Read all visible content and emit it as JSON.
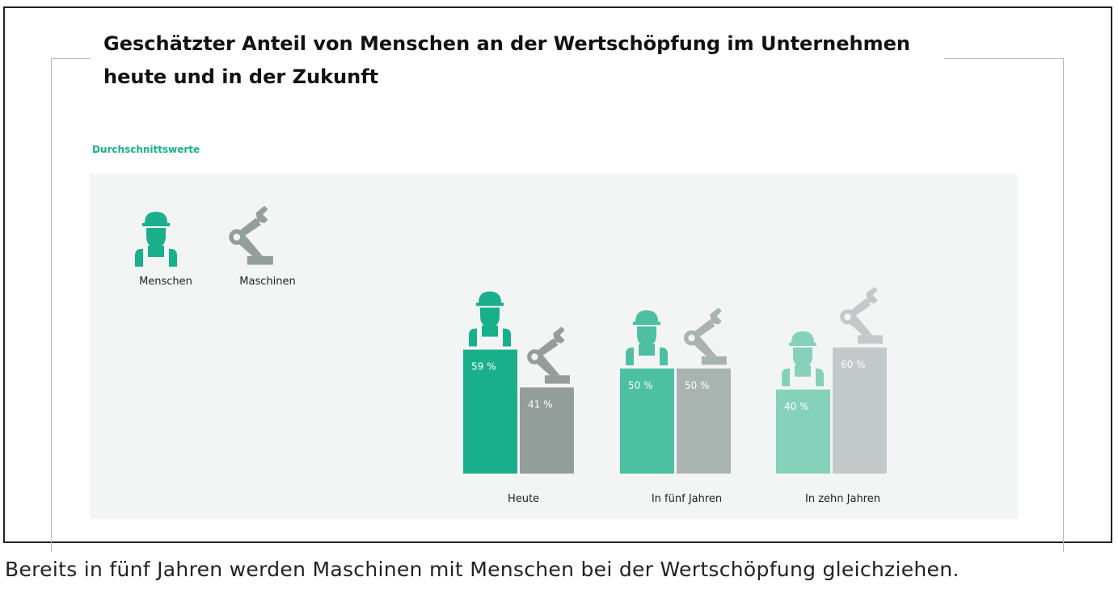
{
  "title_line1": "Geschätzter Anteil von Menschen an der Wertschöpfung im Unternehmen",
  "title_line2": "heute und in der Zukunft",
  "subtitle": "Durchschnittswerte",
  "caption": "Bereits in fünf Jahren werden Maschinen mit Menschen bei der Wertschöpfung gleichziehen.",
  "chart_data": {
    "type": "bar",
    "title": "Geschätzter Anteil von Menschen an der Wertschöpfung im Unternehmen heute und in der Zukunft",
    "categories": [
      "Heute",
      "In fünf Jahren",
      "In zehn Jahren"
    ],
    "series": [
      {
        "name": "Menschen",
        "values": [
          59,
          50,
          40
        ],
        "colors": [
          "#1aaf8b",
          "#4cc0a0",
          "#86d1b9"
        ],
        "icon": "worker-icon"
      },
      {
        "name": "Maschinen",
        "values": [
          41,
          50,
          60
        ],
        "colors": [
          "#939e9a",
          "#a9b3b0",
          "#c3c9c8"
        ],
        "icon": "robot-arm-icon"
      }
    ],
    "value_suffix": " %",
    "legend": {
      "placement": "top-left",
      "items": [
        "Menschen",
        "Maschinen"
      ],
      "colors": [
        "#1aaf8b",
        "#939e9a"
      ]
    },
    "ylim": [
      0,
      100
    ],
    "grid": false
  }
}
